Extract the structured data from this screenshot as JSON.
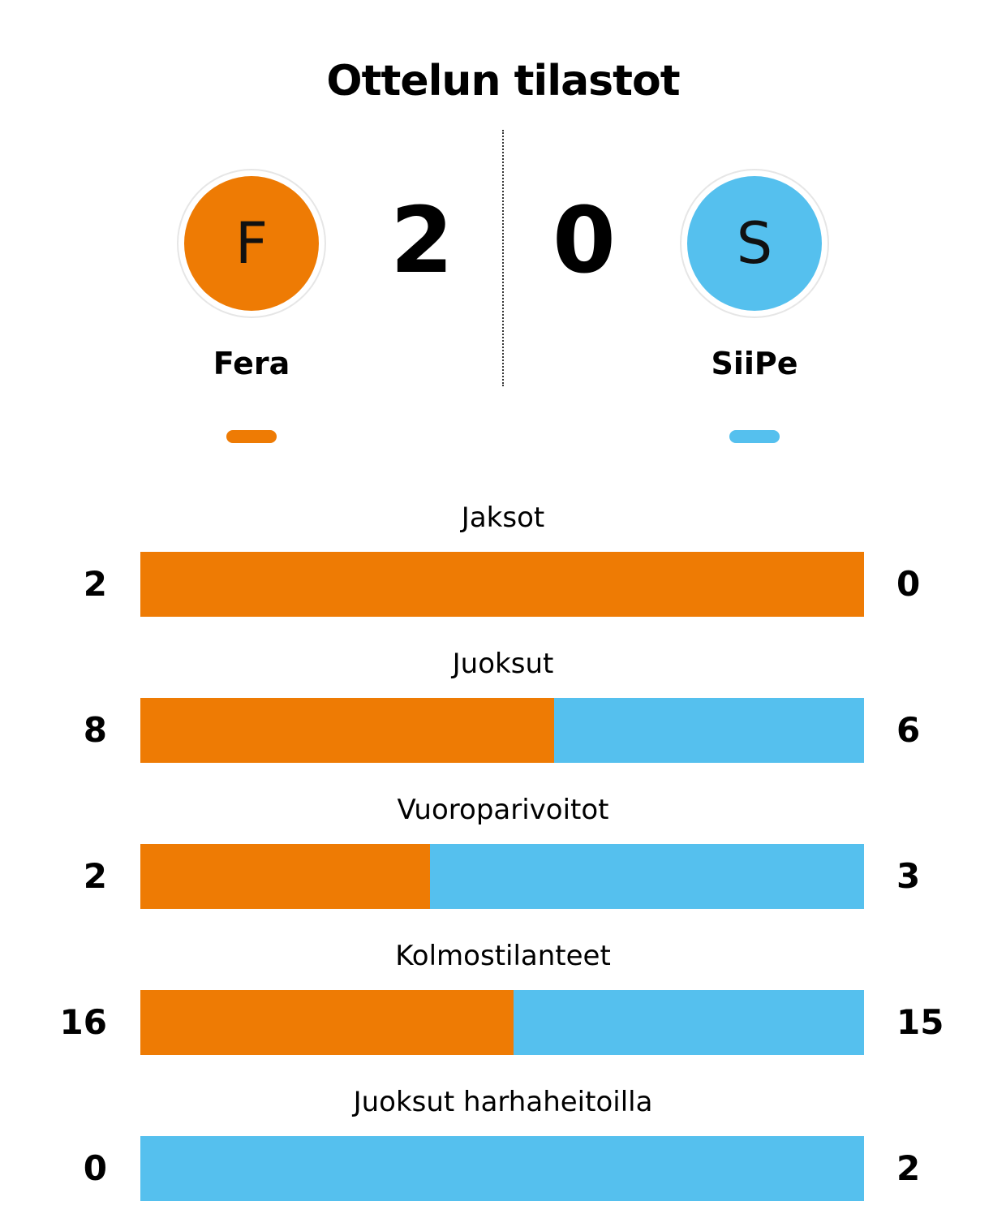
{
  "title": "Ottelun tilastot",
  "colors": {
    "home": "#ee7b04",
    "away": "#55c0ee"
  },
  "home": {
    "initial": "F",
    "name": "Fera",
    "score": "2"
  },
  "away": {
    "initial": "S",
    "name": "SiiPe",
    "score": "0"
  },
  "stats": [
    {
      "label": "Jaksot",
      "home": "2",
      "away": "0"
    },
    {
      "label": "Juoksut",
      "home": "8",
      "away": "6"
    },
    {
      "label": "Vuoroparivoitot",
      "home": "2",
      "away": "3"
    },
    {
      "label": "Kolmostilanteet",
      "home": "16",
      "away": "15"
    },
    {
      "label": "Juoksut harhaheitoilla",
      "home": "0",
      "away": "2"
    }
  ]
}
